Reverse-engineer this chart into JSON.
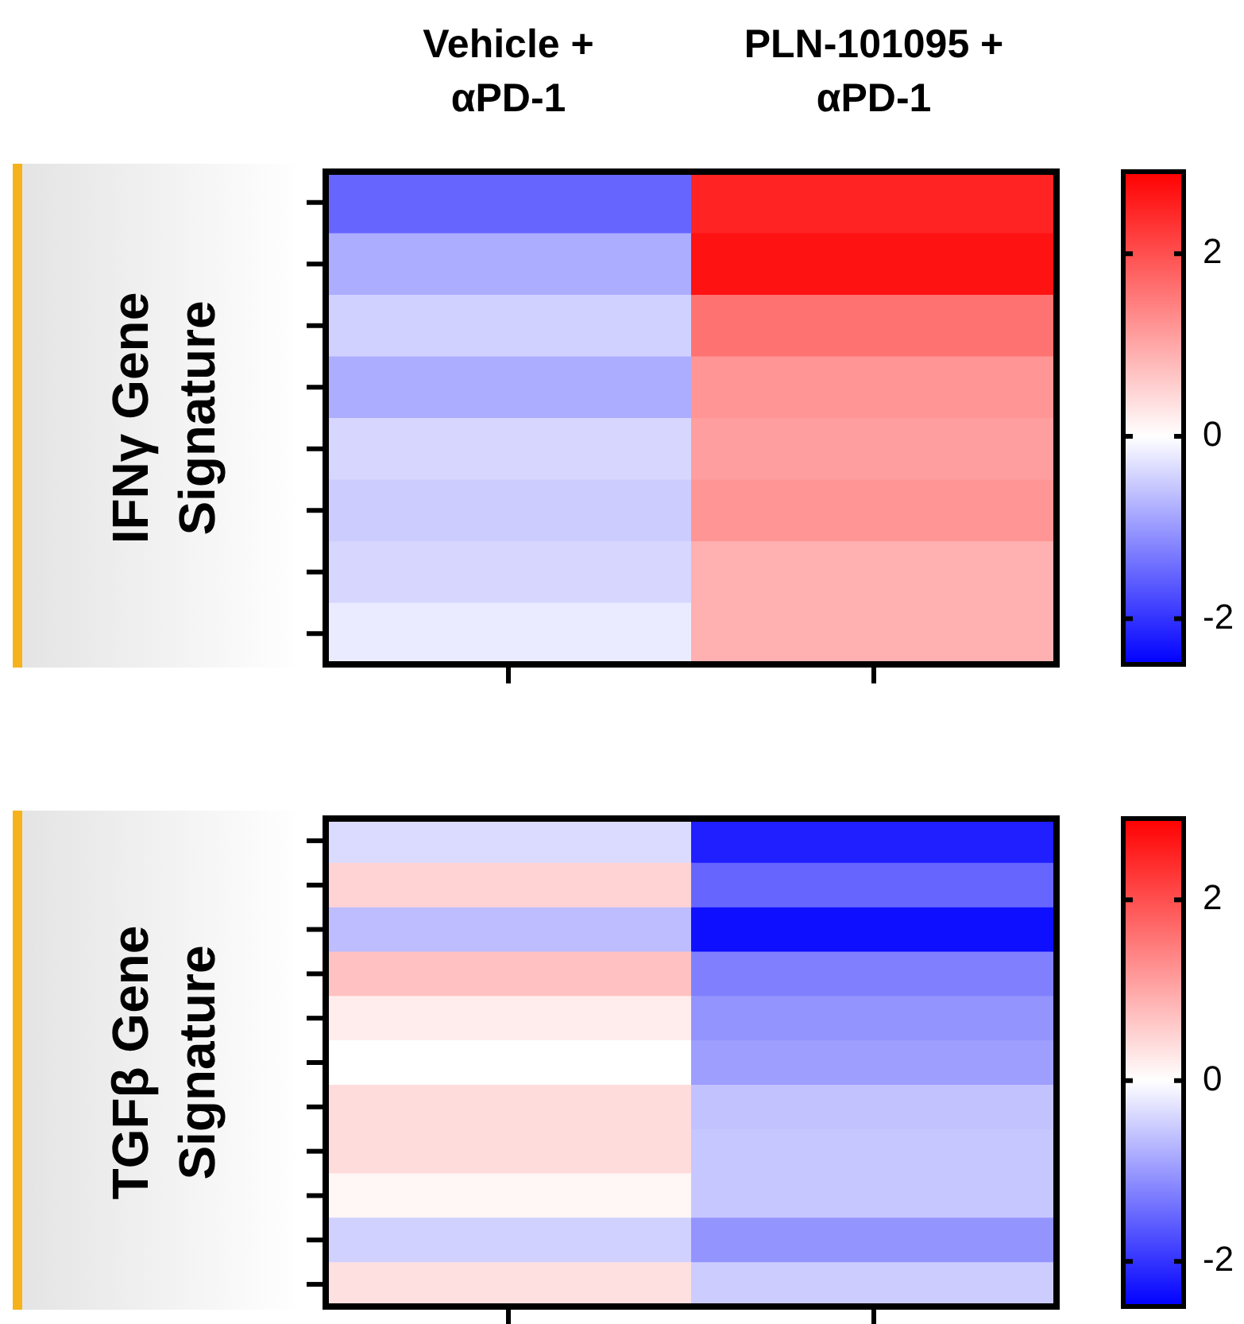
{
  "chart_data": [
    {
      "type": "heatmap",
      "ylabel": "IFNγ Gene Signature",
      "categories": [
        "Vehicle + αPD-1",
        "PLN-101095 + αPD-1"
      ],
      "y_categories": [
        null,
        null,
        null,
        null,
        null,
        null,
        null,
        null
      ],
      "tick_labels": "x",
      "cells": [
        [
          -1.5,
          2.5
        ],
        [
          -0.8,
          2.7
        ],
        [
          -0.45,
          1.6
        ],
        [
          -0.8,
          1.2
        ],
        [
          -0.4,
          1.1
        ],
        [
          -0.5,
          1.2
        ],
        [
          -0.4,
          0.9
        ],
        [
          -0.2,
          0.9
        ]
      ],
      "clim": [
        -2.5,
        2.9
      ],
      "cticks": [
        2,
        0,
        -2
      ]
    },
    {
      "type": "heatmap",
      "ylabel": "TGFβ Gene Signature",
      "categories": [
        null,
        null
      ],
      "y_categories": [
        null,
        null,
        null,
        null,
        null,
        null,
        null,
        null,
        null,
        null,
        null
      ],
      "cells": [
        [
          -0.35,
          -2.2
        ],
        [
          0.5,
          -1.5
        ],
        [
          -0.65,
          -2.35
        ],
        [
          0.7,
          -1.25
        ],
        [
          0.2,
          -1.05
        ],
        [
          0,
          -0.95
        ],
        [
          0.4,
          -0.6
        ],
        [
          0.4,
          -0.55
        ],
        [
          0.1,
          -0.55
        ],
        [
          -0.45,
          -1.05
        ],
        [
          0.35,
          -0.5
        ]
      ],
      "clim": [
        -2.5,
        2.9
      ],
      "cticks": [
        2,
        0,
        -2
      ]
    }
  ]
}
